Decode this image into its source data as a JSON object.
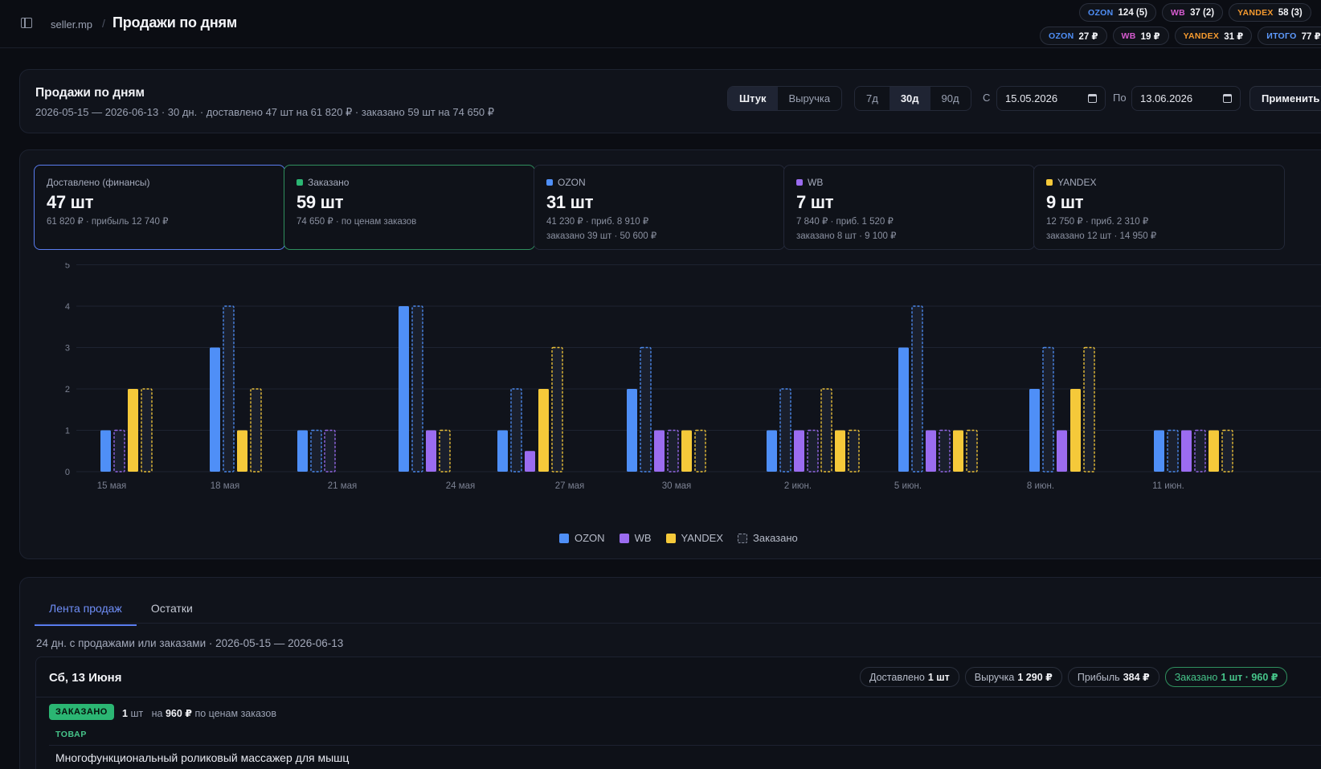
{
  "header": {
    "crumb": "seller.mp",
    "separator": "/",
    "title": "Продажи по дням",
    "summary_row1": [
      {
        "mp": "OZON",
        "value": "124 (5)"
      },
      {
        "mp": "WB",
        "value": "37 (2)"
      },
      {
        "mp": "YANDEX",
        "value": "58 (3)"
      }
    ],
    "summary_row2": [
      {
        "mp": "OZON",
        "value": "27 ₽"
      },
      {
        "mp": "WB",
        "value": "19 ₽"
      },
      {
        "mp": "YANDEX",
        "value": "31 ₽"
      },
      {
        "mp": "ИТОГО",
        "value": "77 ₽"
      }
    ]
  },
  "filter": {
    "title": "Продажи по дням",
    "subtitle": "2026-05-15 — 2026-06-13 · 30 дн. · доставлено 47 шт на 61 820 ₽ · заказано 59 шт на 74 650 ₽",
    "metric_options": [
      "Штук",
      "Выручка"
    ],
    "metric_selected": "Штук",
    "range_options": [
      "7д",
      "30д",
      "90д"
    ],
    "range_selected": "30д",
    "from_label": "С",
    "from_value": "15.05.2026",
    "to_label": "По",
    "to_value": "13.06.2026",
    "apply_label": "Применить"
  },
  "cards": [
    {
      "label": "Доставлено (финансы)",
      "value": "47 шт",
      "sub": "61 820 ₽ · прибыль 12 740 ₽",
      "sub2": ""
    },
    {
      "label": "Заказано",
      "value": "59 шт",
      "sub": "74 650 ₽ · по ценам заказов",
      "sub2": "",
      "dot": "#2bb673"
    },
    {
      "label": "OZON",
      "value": "31 шт",
      "sub": "41 230 ₽ · приб. 8 910 ₽",
      "sub2": "заказано 39 шт · 50 600 ₽",
      "dot": "#4f8ff7"
    },
    {
      "label": "WB",
      "value": "7 шт",
      "sub": "7 840 ₽ · приб. 1 520 ₽",
      "sub2": "заказано 8 шт · 9 100 ₽",
      "dot": "#9b6cf0"
    },
    {
      "label": "YANDEX",
      "value": "9 шт",
      "sub": "12 750 ₽ · приб. 2 310 ₽",
      "sub2": "заказано 12 шт · 14 950 ₽",
      "dot": "#f5c93a"
    }
  ],
  "colors": {
    "ozon": "#4f8ff7",
    "wb": "#9b6cf0",
    "yandex": "#f5c93a",
    "ordered_fill": "#1c2130",
    "green": "#2bb673"
  },
  "chart_data": {
    "type": "bar",
    "y_ticks": [
      0,
      1,
      2,
      3,
      4,
      5
    ],
    "ylim": [
      0,
      5
    ],
    "x_tick_labels": [
      "15 мая",
      "18 мая",
      "21 мая",
      "24 мая",
      "27 мая",
      "30 мая",
      "2 июн.",
      "5 июн.",
      "8 июн.",
      "11 июн."
    ],
    "groups": [
      {
        "bars": [
          {
            "s": "OZON",
            "v": 1,
            "ordered": false
          },
          {
            "s": "WB",
            "v": 1,
            "ordered": true
          },
          {
            "s": "YANDEX",
            "v": 2,
            "ordered": false
          },
          {
            "s": "YANDEX",
            "v": 2,
            "ordered": true
          }
        ]
      },
      {
        "bars": [
          {
            "s": "OZON",
            "v": 3,
            "ordered": false
          },
          {
            "s": "OZON",
            "v": 4,
            "ordered": true
          },
          {
            "s": "YANDEX",
            "v": 1,
            "ordered": false
          },
          {
            "s": "YANDEX",
            "v": 2,
            "ordered": true
          }
        ]
      },
      {
        "bars": [
          {
            "s": "OZON",
            "v": 1,
            "ordered": false
          },
          {
            "s": "OZON",
            "v": 1,
            "ordered": true
          },
          {
            "s": "WB",
            "v": 1,
            "ordered": true
          }
        ]
      },
      {
        "bars": [
          {
            "s": "OZON",
            "v": 4,
            "ordered": false
          },
          {
            "s": "OZON",
            "v": 4,
            "ordered": true
          },
          {
            "s": "WB",
            "v": 1,
            "ordered": false
          },
          {
            "s": "YANDEX",
            "v": 1,
            "ordered": true
          }
        ]
      },
      {
        "bars": [
          {
            "s": "OZON",
            "v": 1,
            "ordered": false
          },
          {
            "s": "OZON",
            "v": 2,
            "ordered": true
          },
          {
            "s": "WB",
            "v": 0.5,
            "ordered": false
          },
          {
            "s": "YANDEX",
            "v": 2,
            "ordered": false
          },
          {
            "s": "YANDEX",
            "v": 3,
            "ordered": true
          }
        ]
      },
      {
        "bars": [
          {
            "s": "OZON",
            "v": 2,
            "ordered": false
          },
          {
            "s": "OZON",
            "v": 3,
            "ordered": true
          },
          {
            "s": "WB",
            "v": 1,
            "ordered": false
          },
          {
            "s": "WB",
            "v": 1,
            "ordered": true
          },
          {
            "s": "YANDEX",
            "v": 1,
            "ordered": false
          },
          {
            "s": "YANDEX",
            "v": 1,
            "ordered": true
          }
        ]
      },
      {
        "bars": [
          {
            "s": "OZON",
            "v": 1,
            "ordered": false
          },
          {
            "s": "OZON",
            "v": 2,
            "ordered": true
          },
          {
            "s": "WB",
            "v": 1,
            "ordered": false
          },
          {
            "s": "WB",
            "v": 1,
            "ordered": true
          },
          {
            "s": "YANDEX",
            "v": 2,
            "ordered": true
          },
          {
            "s": "YANDEX",
            "v": 1,
            "ordered": false
          },
          {
            "s": "YANDEX",
            "v": 1,
            "ordered": true
          }
        ]
      },
      {
        "bars": [
          {
            "s": "OZON",
            "v": 3,
            "ordered": false
          },
          {
            "s": "OZON",
            "v": 4,
            "ordered": true
          },
          {
            "s": "WB",
            "v": 1,
            "ordered": false
          },
          {
            "s": "WB",
            "v": 1,
            "ordered": true
          },
          {
            "s": "YANDEX",
            "v": 1,
            "ordered": false
          },
          {
            "s": "YANDEX",
            "v": 1,
            "ordered": true
          }
        ]
      },
      {
        "bars": [
          {
            "s": "OZON",
            "v": 2,
            "ordered": false
          },
          {
            "s": "OZON",
            "v": 3,
            "ordered": true
          },
          {
            "s": "WB",
            "v": 1,
            "ordered": false
          },
          {
            "s": "YANDEX",
            "v": 2,
            "ordered": false
          },
          {
            "s": "YANDEX",
            "v": 3,
            "ordered": true
          }
        ]
      },
      {
        "bars": [
          {
            "s": "OZON",
            "v": 1,
            "ordered": false
          },
          {
            "s": "OZON",
            "v": 1,
            "ordered": true
          },
          {
            "s": "WB",
            "v": 1,
            "ordered": false
          },
          {
            "s": "WB",
            "v": 1,
            "ordered": true
          },
          {
            "s": "YANDEX",
            "v": 1,
            "ordered": false
          },
          {
            "s": "YANDEX",
            "v": 1,
            "ordered": true
          }
        ]
      }
    ],
    "legend": [
      "OZON",
      "WB",
      "YANDEX",
      "Заказано"
    ],
    "grid": true
  },
  "feed": {
    "tabs": [
      "Лента продаж",
      "Остатки"
    ],
    "active_tab": "Лента продаж",
    "subtitle": "24 дн. с продажами или заказами · 2026-05-15 — 2026-06-13",
    "day": {
      "title": "Сб, 13 Июня",
      "chips": [
        {
          "label": "Доставлено",
          "value": "1 шт"
        },
        {
          "label": "Выручка",
          "value": "1 290 ₽"
        },
        {
          "label": "Прибыль",
          "value": "384 ₽"
        },
        {
          "label": "Заказано",
          "value": "1 шт · 960 ₽"
        }
      ],
      "badge": "ЗАКАЗАНО",
      "order_qty": "1",
      "order_qty_unit": "шт",
      "order_on": "на",
      "order_amount": "960 ₽",
      "order_note": "по ценам заказов",
      "col_header": "ТОВАР",
      "product": "Многофункциональный роликовый массажер для мышц"
    }
  }
}
